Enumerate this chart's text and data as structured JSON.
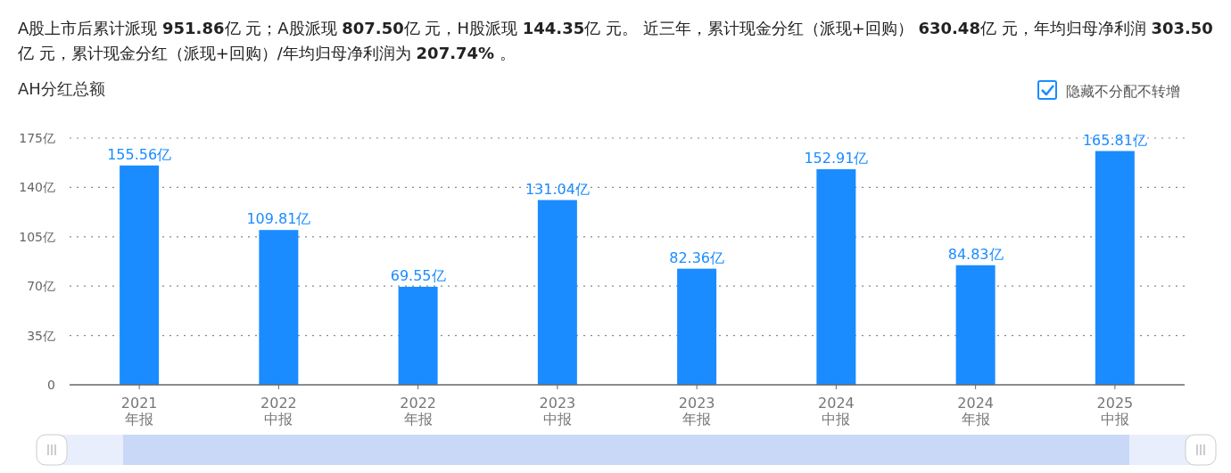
{
  "chart_data": {
    "type": "bar",
    "subtitle": "A股上市后累计派现 **951.86**亿 元；A股派现 **807.50**亿 元，H股派现 **144.35**亿 元。 近三年，累计现金分红（派现+回购） **630.48**亿 元，年均归母净利润 **303.50**亿 元，累计现金分红（派现+回购）/年均归母净利润为 **207.74%** 。",
    "title": "AH分红总额",
    "annotations": [
      "隐藏不分配不转增"
    ],
    "categories": [
      "2021\n年报",
      "2022\n中报",
      "2022\n年报",
      "2023\n中报",
      "2023\n年报",
      "2024\n中报",
      "2024\n年报",
      "2025\n中报"
    ],
    "values": [
      155.56,
      109.81,
      69.55,
      131.04,
      82.36,
      152.91,
      84.83,
      165.81
    ],
    "value_labels": [
      "155.56亿",
      "109.81亿",
      "69.55亿",
      "131.04亿",
      "82.36亿",
      "152.91亿",
      "84.83亿",
      "165.81亿"
    ],
    "color": "#1a8cff",
    "ylim": [
      0,
      175
    ],
    "yticks": [
      0,
      {
        "value": 35,
        "label": "35亿"
      },
      {
        "value": 70,
        "label": "70亿"
      },
      {
        "value": 105,
        "label": "105亿"
      },
      {
        "value": 140,
        "label": "140亿"
      },
      {
        "value": 175,
        "label": "175亿"
      }
    ],
    "grid": "y"
  }
}
